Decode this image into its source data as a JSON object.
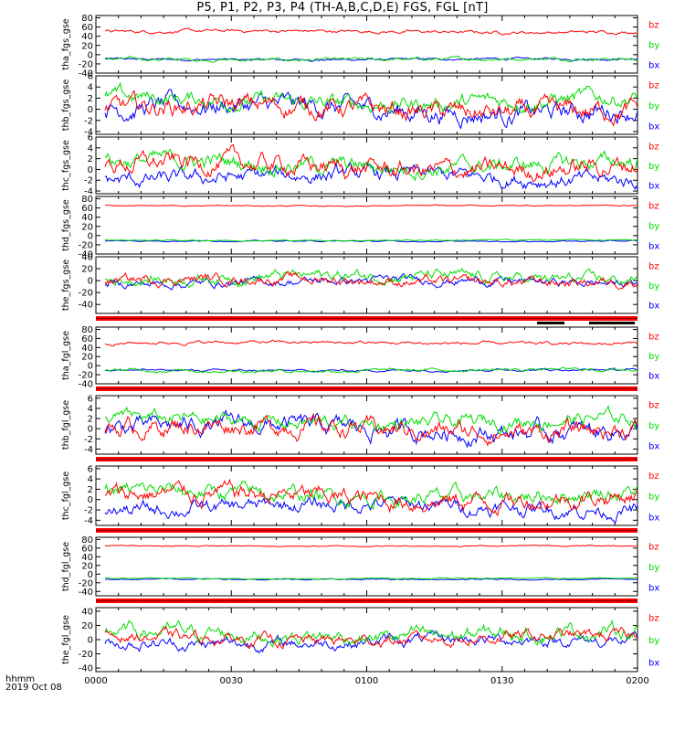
{
  "title": "P5, P1, P2, P3, P4 (TH-A,B,C,D,E) FGS, FGL [nT]",
  "time_axis_label": "hhmm",
  "date_label": "2019 Oct 08",
  "colors": {
    "bx": "#0000ff",
    "by": "#00dd00",
    "bz": "#ff0000",
    "bar": "#ff0000",
    "frame": "#000000"
  },
  "chart_data": {
    "type": "line",
    "x_ticks": [
      "0000",
      "0030",
      "0100",
      "0130",
      "0200"
    ],
    "x_range_minutes": [
      0,
      120
    ],
    "panels": [
      {
        "ylabel": "tha_fgs_gse",
        "yticks": [
          "80",
          "60",
          "40",
          "20",
          "0",
          "-20",
          "-40"
        ],
        "ylim": [
          -40,
          85
        ],
        "series": [
          {
            "name": "bz",
            "base": 50,
            "amp": 3
          },
          {
            "name": "by",
            "base": -10,
            "amp": 3
          },
          {
            "name": "bx",
            "base": -10,
            "amp": 2
          }
        ],
        "bar_below": false
      },
      {
        "ylabel": "thb_fgs_gse",
        "yticks": [
          "6",
          "4",
          "2",
          "0",
          "-2",
          "-4"
        ],
        "ylim": [
          -4.5,
          6
        ],
        "series": [
          {
            "name": "bz",
            "base": 0,
            "amp": 1.5
          },
          {
            "name": "by",
            "base": 1.5,
            "amp": 1.2
          },
          {
            "name": "bx",
            "base": 0,
            "amp": 1.5
          }
        ],
        "bar_below": false
      },
      {
        "ylabel": "thc_fgs_gse",
        "yticks": [
          "6",
          "4",
          "2",
          "0",
          "-2",
          "-4"
        ],
        "ylim": [
          -4.5,
          6
        ],
        "series": [
          {
            "name": "bz",
            "base": 0.5,
            "amp": 1.5
          },
          {
            "name": "by",
            "base": 1,
            "amp": 1.3
          },
          {
            "name": "bx",
            "base": -1.5,
            "amp": 1.2
          }
        ],
        "bar_below": false
      },
      {
        "ylabel": "thd_fgs_gse",
        "yticks": [
          "80",
          "60",
          "40",
          "20",
          "0",
          "-20",
          "-40"
        ],
        "ylim": [
          -40,
          85
        ],
        "series": [
          {
            "name": "bz",
            "base": 65,
            "amp": 1
          },
          {
            "name": "by",
            "base": -10,
            "amp": 1
          },
          {
            "name": "bx",
            "base": -12,
            "amp": 1
          }
        ],
        "bar_below": false
      },
      {
        "ylabel": "the_fgs_gse",
        "yticks": [
          "40",
          "20",
          "0",
          "-20",
          "-40"
        ],
        "ylim": [
          -55,
          40
        ],
        "series": [
          {
            "name": "bz",
            "base": 0,
            "amp": 7
          },
          {
            "name": "by",
            "base": 5,
            "amp": 8
          },
          {
            "name": "bx",
            "base": -2,
            "amp": 6
          }
        ],
        "bar_below": true
      },
      {
        "ylabel": "tha_fgl_gse",
        "yticks": [
          "80",
          "60",
          "40",
          "20",
          "0",
          "-20",
          "-40"
        ],
        "ylim": [
          -40,
          85
        ],
        "series": [
          {
            "name": "bz",
            "base": 50,
            "amp": 3
          },
          {
            "name": "by",
            "base": -10,
            "amp": 3
          },
          {
            "name": "bx",
            "base": -10,
            "amp": 2
          }
        ],
        "bar_below": true
      },
      {
        "ylabel": "thb_fgl_gse",
        "yticks": [
          "6",
          "4",
          "2",
          "0",
          "-2",
          "-4"
        ],
        "ylim": [
          -5,
          6.5
        ],
        "series": [
          {
            "name": "bz",
            "base": 0,
            "amp": 1.5
          },
          {
            "name": "by",
            "base": 1.5,
            "amp": 1.2
          },
          {
            "name": "bx",
            "base": 0,
            "amp": 1.5
          }
        ],
        "bar_below": true
      },
      {
        "ylabel": "thc_fgl_gse",
        "yticks": [
          "6",
          "4",
          "2",
          "0",
          "-2",
          "-4"
        ],
        "ylim": [
          -5,
          6.5
        ],
        "series": [
          {
            "name": "bz",
            "base": 0.5,
            "amp": 1.5
          },
          {
            "name": "by",
            "base": 1,
            "amp": 1.3
          },
          {
            "name": "bx",
            "base": -1.5,
            "amp": 1.2
          }
        ],
        "bar_below": true
      },
      {
        "ylabel": "thd_fgl_gse",
        "yticks": [
          "80",
          "60",
          "40",
          "20",
          "0",
          "-20",
          "-40"
        ],
        "ylim": [
          -50,
          85
        ],
        "series": [
          {
            "name": "bz",
            "base": 65,
            "amp": 1
          },
          {
            "name": "by",
            "base": -10,
            "amp": 1
          },
          {
            "name": "bx",
            "base": -12,
            "amp": 1
          }
        ],
        "bar_below": true
      },
      {
        "ylabel": "the_fgl_gse",
        "yticks": [
          "40",
          "20",
          "0",
          "-20",
          "-40"
        ],
        "ylim": [
          -45,
          45
        ],
        "series": [
          {
            "name": "bz",
            "base": 2,
            "amp": 7
          },
          {
            "name": "by",
            "base": 8,
            "amp": 9
          },
          {
            "name": "bx",
            "base": -3,
            "amp": 7
          }
        ],
        "bar_below": false
      }
    ]
  }
}
